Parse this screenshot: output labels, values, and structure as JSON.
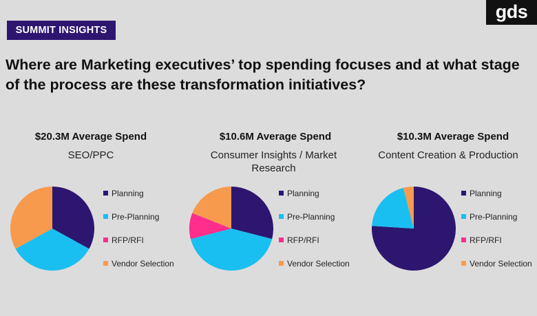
{
  "badge": "SUMMIT INSIGHTS",
  "logo": "gds",
  "headline": "Where are Marketing executives’ top spending focuses and at what stage of the process are these transformation initiatives?",
  "legend_labels": [
    "Planning",
    "Pre-Planning",
    "RFP/RFI",
    "Vendor Selection"
  ],
  "colors": {
    "Planning": "#2c1670",
    "Pre-Planning": "#19bff0",
    "RFP/RFI": "#ff2d8c",
    "Vendor Selection": "#f79a4e",
    "badge": "#2c1670",
    "background": "#dcdcdc"
  },
  "chart_data": [
    {
      "type": "pie",
      "title": "$20.3M Average Spend",
      "subtitle": "SEO/PPC",
      "labels": [
        "Planning",
        "Pre-Planning",
        "RFP/RFI",
        "Vendor Selection"
      ],
      "values": [
        33,
        34,
        0,
        33
      ]
    },
    {
      "type": "pie",
      "title": "$10.6M Average Spend",
      "subtitle": "Consumer Insights / Market Research",
      "labels": [
        "Planning",
        "Pre-Planning",
        "RFP/RFI",
        "Vendor Selection"
      ],
      "values": [
        29,
        42,
        10,
        19
      ]
    },
    {
      "type": "pie",
      "title": "$10.3M Average Spend",
      "subtitle": "Content Creation & Production",
      "labels": [
        "Planning",
        "Pre-Planning",
        "RFP/RFI",
        "Vendor Selection"
      ],
      "values": [
        76,
        20,
        0,
        4
      ]
    }
  ]
}
